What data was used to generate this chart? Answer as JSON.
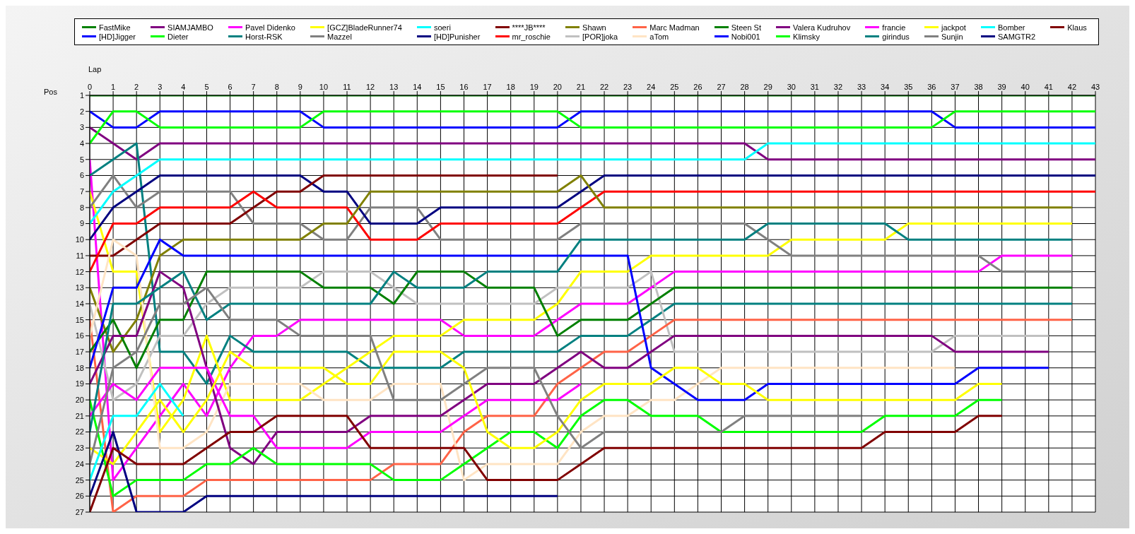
{
  "chart_data": {
    "type": "line",
    "xlabel": "Lap",
    "ylabel": "Pos",
    "xlim": [
      0,
      43
    ],
    "xticks": [
      0,
      1,
      2,
      3,
      4,
      5,
      6,
      7,
      8,
      9,
      10,
      11,
      12,
      13,
      14,
      15,
      16,
      17,
      18,
      19,
      20,
      21,
      22,
      23,
      24,
      25,
      26,
      27,
      28,
      29,
      30,
      31,
      32,
      33,
      34,
      35,
      36,
      37,
      38,
      39,
      40,
      41,
      42,
      43
    ],
    "ylim": [
      27,
      1
    ],
    "yticks": [
      1,
      2,
      3,
      4,
      5,
      6,
      7,
      8,
      9,
      10,
      11,
      12,
      13,
      14,
      15,
      16,
      17,
      18,
      19,
      20,
      21,
      22,
      23,
      24,
      25,
      26,
      27
    ],
    "grid": true,
    "legend": "top",
    "marker": "none",
    "line_style": "solid",
    "x": [
      0,
      1,
      2,
      3,
      4,
      5,
      6,
      7,
      8,
      9,
      10,
      11,
      12,
      13,
      14,
      15,
      16,
      17,
      18,
      19,
      20,
      21,
      22,
      23,
      24,
      25,
      26,
      27,
      28,
      29,
      30,
      31,
      32,
      33,
      34,
      35,
      36,
      37,
      38,
      39,
      40,
      41,
      42,
      43
    ],
    "series": [
      {
        "name": "FastMike",
        "color": "#008000",
        "values": [
          1,
          1,
          1,
          1,
          1,
          1,
          1,
          1,
          1,
          1,
          1,
          1,
          1,
          1,
          1,
          1,
          1,
          1,
          1,
          1,
          1,
          1,
          1,
          1,
          1,
          1,
          1,
          1,
          1,
          1,
          1,
          1,
          1,
          1,
          1,
          1,
          1,
          1,
          1,
          1,
          1,
          1,
          1,
          1
        ]
      },
      {
        "name": "[HD]Jigger",
        "color": "#0000ff",
        "values": [
          2,
          3,
          3,
          2,
          2,
          2,
          2,
          2,
          2,
          2,
          3,
          3,
          3,
          3,
          3,
          3,
          3,
          3,
          3,
          3,
          3,
          2,
          2,
          2,
          2,
          2,
          2,
          2,
          2,
          2,
          2,
          2,
          2,
          2,
          2,
          2,
          2,
          3,
          3,
          3,
          3,
          3,
          3,
          3
        ]
      },
      {
        "name": "SIAMJAMBO",
        "color": "#800080",
        "values": [
          3,
          4,
          5,
          4,
          4,
          4,
          4,
          4,
          4,
          4,
          4,
          4,
          4,
          4,
          4,
          4,
          4,
          4,
          4,
          4,
          4,
          4,
          4,
          4,
          4,
          4,
          4,
          4,
          4,
          5,
          5,
          5,
          5,
          5,
          5,
          5,
          5,
          5,
          5,
          5,
          5,
          5,
          5,
          5
        ]
      },
      {
        "name": "Dieter",
        "color": "#00ff00",
        "values": [
          4,
          2,
          2,
          3,
          3,
          3,
          3,
          3,
          3,
          3,
          2,
          2,
          2,
          2,
          2,
          2,
          2,
          2,
          2,
          2,
          2,
          3,
          3,
          3,
          3,
          3,
          3,
          3,
          3,
          3,
          3,
          3,
          3,
          3,
          3,
          3,
          3,
          2,
          2,
          2,
          2,
          2,
          2,
          2
        ]
      },
      {
        "name": "Pavel Didenko",
        "color": "#ff00ff",
        "values": [
          5,
          25,
          23,
          21,
          19,
          21,
          18,
          16,
          16,
          15,
          15,
          15,
          15,
          15,
          15,
          15,
          16,
          16,
          16,
          16,
          15,
          14,
          14,
          14,
          13,
          12,
          12,
          12,
          12,
          12,
          12,
          12,
          12,
          12,
          12,
          12,
          12,
          12,
          12,
          11,
          11,
          11,
          11,
          null
        ]
      },
      {
        "name": "Horst-RSK",
        "color": "#008080",
        "values": [
          6,
          5,
          4,
          17,
          17,
          19,
          16,
          17,
          17,
          17,
          17,
          17,
          18,
          18,
          18,
          18,
          17,
          17,
          17,
          17,
          17,
          16,
          16,
          16,
          15,
          14,
          14,
          14,
          14,
          14,
          14,
          14,
          14,
          14,
          14,
          14,
          14,
          14,
          14,
          14,
          14,
          14,
          14,
          null
        ]
      },
      {
        "name": "[GCZ]BladeRunner74",
        "color": "#ffff00",
        "values": [
          7,
          12,
          12,
          22,
          20,
          16,
          20,
          20,
          20,
          20,
          19,
          18,
          17,
          16,
          16,
          16,
          15,
          15,
          15,
          15,
          14,
          12,
          12,
          12,
          11,
          11,
          11,
          11,
          11,
          11,
          10,
          10,
          10,
          10,
          10,
          9,
          9,
          9,
          9,
          9,
          9,
          9,
          9,
          null
        ]
      },
      {
        "name": "Mazzel",
        "color": "#808080",
        "values": [
          8,
          6,
          8,
          7,
          7,
          7,
          7,
          9,
          9,
          9,
          10,
          10,
          8,
          8,
          8,
          10,
          10,
          10,
          10,
          10,
          10,
          9,
          9,
          9,
          9,
          9,
          9,
          9,
          9,
          10,
          11,
          11,
          11,
          11,
          11,
          11,
          11,
          11,
          11,
          12,
          12,
          12,
          12,
          null
        ]
      },
      {
        "name": "soeri",
        "color": "#00ffff",
        "values": [
          9,
          7,
          6,
          5,
          5,
          5,
          5,
          5,
          5,
          5,
          5,
          5,
          5,
          5,
          5,
          5,
          5,
          5,
          5,
          5,
          5,
          5,
          5,
          5,
          5,
          5,
          5,
          5,
          5,
          4,
          4,
          4,
          4,
          4,
          4,
          4,
          4,
          4,
          4,
          4,
          4,
          4,
          4,
          4
        ]
      },
      {
        "name": "[HD]Punisher",
        "color": "#000080",
        "values": [
          10,
          8,
          7,
          6,
          6,
          6,
          6,
          6,
          6,
          6,
          7,
          7,
          9,
          9,
          9,
          8,
          8,
          8,
          8,
          8,
          8,
          7,
          6,
          6,
          6,
          6,
          6,
          6,
          6,
          6,
          6,
          6,
          6,
          6,
          6,
          6,
          6,
          6,
          6,
          6,
          6,
          6,
          6,
          6
        ]
      },
      {
        "name": "****JB****",
        "color": "#800000",
        "values": [
          11,
          11,
          10,
          9,
          9,
          9,
          9,
          8,
          7,
          7,
          6,
          6,
          6,
          6,
          6,
          6,
          6,
          6,
          6,
          6,
          6,
          null,
          null,
          null,
          null,
          null,
          null,
          null,
          null,
          null,
          null,
          null,
          null,
          null,
          null,
          null,
          null,
          null,
          null,
          null,
          null,
          null,
          null,
          null
        ]
      },
      {
        "name": "mr_roschie",
        "color": "#ff0000",
        "values": [
          12,
          9,
          9,
          8,
          8,
          8,
          8,
          7,
          8,
          8,
          8,
          8,
          10,
          10,
          10,
          9,
          9,
          9,
          9,
          9,
          9,
          8,
          7,
          7,
          7,
          7,
          7,
          7,
          7,
          7,
          7,
          7,
          7,
          7,
          7,
          7,
          7,
          7,
          7,
          7,
          7,
          7,
          7,
          7
        ]
      },
      {
        "name": "Shawn",
        "color": "#808000",
        "values": [
          13,
          17,
          15,
          11,
          10,
          10,
          10,
          10,
          10,
          10,
          9,
          9,
          7,
          7,
          7,
          7,
          7,
          7,
          7,
          7,
          7,
          6,
          8,
          8,
          8,
          8,
          8,
          8,
          8,
          8,
          8,
          8,
          8,
          8,
          8,
          8,
          8,
          8,
          8,
          8,
          8,
          8,
          8,
          null
        ]
      },
      {
        "name": "[POR]joka",
        "color": "#c0c0c0",
        "values": [
          14,
          20,
          19,
          16,
          16,
          14,
          13,
          13,
          13,
          13,
          12,
          12,
          12,
          13,
          14,
          14,
          14,
          14,
          14,
          14,
          13,
          13,
          13,
          13,
          12,
          17,
          17,
          17,
          17,
          17,
          17,
          17,
          17,
          17,
          17,
          17,
          17,
          16,
          16,
          16,
          16,
          16,
          null,
          null
        ]
      },
      {
        "name": "Marc Madman",
        "color": "#ff6347",
        "values": [
          15,
          27,
          26,
          26,
          26,
          25,
          25,
          25,
          25,
          25,
          25,
          25,
          25,
          24,
          24,
          24,
          22,
          21,
          21,
          21,
          19,
          18,
          17,
          17,
          16,
          15,
          15,
          15,
          15,
          15,
          15,
          15,
          15,
          15,
          15,
          15,
          15,
          15,
          15,
          15,
          15,
          15,
          15,
          null
        ]
      },
      {
        "name": "aTom",
        "color": "#ffe4c4",
        "values": [
          16,
          10,
          11,
          23,
          23,
          22,
          19,
          19,
          19,
          19,
          20,
          20,
          20,
          19,
          19,
          19,
          25,
          24,
          24,
          24,
          24,
          22,
          21,
          21,
          20,
          20,
          19,
          18,
          18,
          18,
          18,
          18,
          18,
          18,
          18,
          18,
          18,
          18,
          null,
          null,
          null,
          null,
          null,
          null
        ]
      },
      {
        "name": "Steen St",
        "color": "#008000",
        "values": [
          17,
          15,
          18,
          15,
          15,
          12,
          12,
          12,
          12,
          12,
          13,
          13,
          13,
          14,
          12,
          12,
          12,
          13,
          13,
          13,
          16,
          15,
          15,
          15,
          14,
          13,
          13,
          13,
          13,
          13,
          13,
          13,
          13,
          13,
          13,
          13,
          13,
          13,
          13,
          13,
          13,
          13,
          13,
          null
        ]
      },
      {
        "name": "Nobi001",
        "color": "#0000ff",
        "values": [
          18,
          13,
          13,
          10,
          11,
          11,
          11,
          11,
          11,
          11,
          11,
          11,
          11,
          11,
          11,
          11,
          11,
          11,
          11,
          11,
          11,
          11,
          11,
          11,
          18,
          19,
          20,
          20,
          20,
          19,
          19,
          19,
          19,
          19,
          19,
          19,
          19,
          19,
          18,
          18,
          18,
          18,
          null,
          null
        ]
      },
      {
        "name": "Valera Kudruhov",
        "color": "#800080",
        "values": [
          19,
          16,
          16,
          12,
          13,
          18,
          23,
          24,
          22,
          22,
          22,
          22,
          21,
          21,
          21,
          21,
          20,
          19,
          19,
          19,
          18,
          17,
          18,
          18,
          17,
          16,
          16,
          16,
          16,
          16,
          16,
          16,
          16,
          16,
          16,
          16,
          16,
          17,
          17,
          17,
          17,
          17,
          null,
          null
        ]
      },
      {
        "name": "Klimsky",
        "color": "#00ff00",
        "values": [
          20,
          26,
          25,
          25,
          25,
          24,
          24,
          23,
          24,
          24,
          24,
          24,
          24,
          25,
          25,
          25,
          24,
          23,
          22,
          22,
          23,
          21,
          20,
          20,
          21,
          21,
          21,
          22,
          22,
          22,
          22,
          22,
          22,
          22,
          21,
          21,
          21,
          21,
          20,
          20,
          null,
          null,
          null,
          null
        ]
      },
      {
        "name": "francie",
        "color": "#ff00ff",
        "values": [
          21,
          19,
          20,
          18,
          18,
          18,
          21,
          21,
          23,
          23,
          23,
          23,
          22,
          22,
          22,
          22,
          21,
          20,
          20,
          20,
          20,
          19,
          null,
          null,
          null,
          null,
          null,
          null,
          null,
          null,
          null,
          null,
          null,
          null,
          null,
          null,
          null,
          null,
          null,
          null,
          null,
          null,
          null,
          null
        ]
      },
      {
        "name": "girindus",
        "color": "#008080",
        "values": [
          22,
          14,
          14,
          13,
          12,
          15,
          14,
          14,
          14,
          14,
          14,
          14,
          14,
          12,
          13,
          13,
          13,
          12,
          12,
          12,
          12,
          10,
          10,
          10,
          10,
          10,
          10,
          10,
          10,
          9,
          9,
          9,
          9,
          9,
          9,
          10,
          10,
          10,
          10,
          10,
          10,
          10,
          10,
          null
        ]
      },
      {
        "name": "jackpot",
        "color": "#ffff00",
        "values": [
          23,
          24,
          22,
          20,
          22,
          20,
          17,
          18,
          18,
          18,
          18,
          19,
          19,
          17,
          17,
          17,
          18,
          22,
          23,
          23,
          22,
          20,
          19,
          19,
          19,
          18,
          18,
          19,
          19,
          20,
          20,
          20,
          20,
          20,
          20,
          20,
          20,
          20,
          19,
          19,
          null,
          null,
          null,
          null
        ]
      },
      {
        "name": "Sunjin",
        "color": "#808080",
        "values": [
          24,
          18,
          17,
          14,
          14,
          13,
          15,
          15,
          15,
          16,
          16,
          16,
          16,
          20,
          20,
          20,
          19,
          18,
          18,
          18,
          21,
          23,
          22,
          22,
          22,
          22,
          22,
          22,
          21,
          21,
          21,
          21,
          21,
          21,
          null,
          null,
          null,
          null,
          null,
          null,
          null,
          null,
          null,
          null
        ]
      },
      {
        "name": "Bomber",
        "color": "#00ffff",
        "values": [
          25,
          21,
          21,
          19,
          21,
          null,
          null,
          null,
          null,
          null,
          null,
          null,
          null,
          null,
          null,
          null,
          null,
          null,
          null,
          null,
          null,
          null,
          null,
          null,
          null,
          null,
          null,
          null,
          null,
          null,
          null,
          null,
          null,
          null,
          null,
          null,
          null,
          null,
          null,
          null,
          null,
          null,
          null,
          null
        ]
      },
      {
        "name": "SAMGTR2",
        "color": "#000080",
        "values": [
          26,
          22,
          27,
          27,
          27,
          26,
          26,
          26,
          26,
          26,
          26,
          26,
          26,
          26,
          26,
          26,
          26,
          26,
          26,
          26,
          26,
          null,
          null,
          null,
          null,
          null,
          null,
          null,
          null,
          null,
          null,
          null,
          null,
          null,
          null,
          null,
          null,
          null,
          null,
          null,
          null,
          null,
          null,
          null
        ]
      },
      {
        "name": "Klaus",
        "color": "#800000",
        "values": [
          27,
          23,
          24,
          24,
          24,
          23,
          22,
          22,
          21,
          21,
          21,
          21,
          23,
          23,
          23,
          23,
          23,
          25,
          25,
          25,
          25,
          24,
          23,
          23,
          23,
          23,
          23,
          23,
          23,
          23,
          23,
          23,
          23,
          23,
          22,
          22,
          22,
          22,
          21,
          21,
          null,
          null,
          null,
          null
        ]
      }
    ]
  }
}
